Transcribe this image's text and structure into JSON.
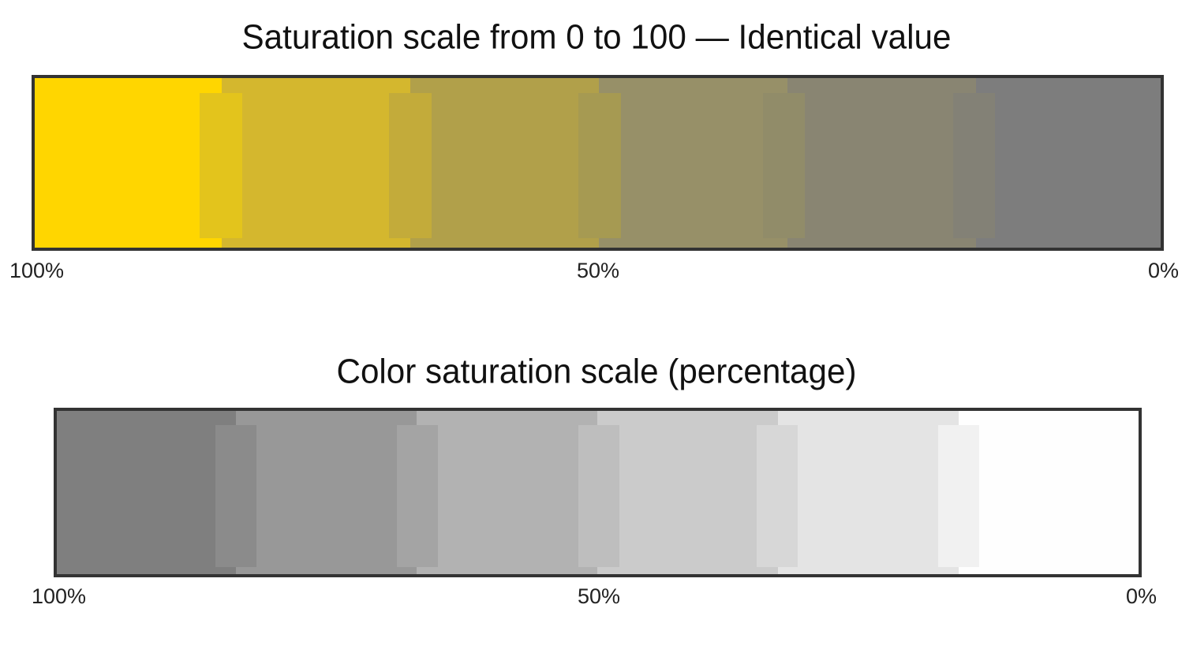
{
  "scales": [
    {
      "title": "Saturation scale from 0 to 100 — Identical value",
      "labels": [
        "100%",
        "50%",
        "0%"
      ]
    },
    {
      "title": "Color saturation scale (percentage)",
      "labels": [
        "100%",
        "50%",
        "0%"
      ]
    }
  ]
}
